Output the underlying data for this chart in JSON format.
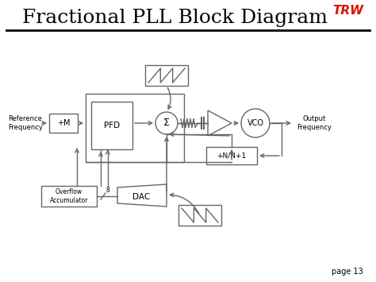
{
  "title": "Fractional PLL Block Diagram",
  "title_fontsize": 18,
  "title_font": "serif",
  "bg_color": "#ffffff",
  "line_color": "#666666",
  "page_text": "page 13",
  "trw_color": "#dd1100",
  "fig_w": 4.74,
  "fig_h": 3.55,
  "dpi": 100,
  "ref_freq": "Reference\nFrequency",
  "out_freq": "Output\nFrequency",
  "lw": 1.0
}
